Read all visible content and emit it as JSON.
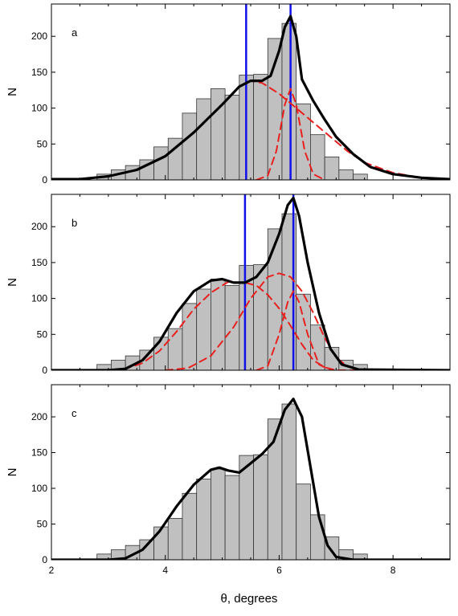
{
  "chart_data": {
    "type": "bar",
    "xlabel": "θ, degrees",
    "ylabel": "N",
    "xlim": [
      2,
      9
    ],
    "ylim": [
      0,
      245
    ],
    "xticks": [
      2,
      4,
      6,
      8
    ],
    "yticks": [
      0,
      50,
      100,
      150,
      200
    ],
    "bin_edges": [
      2.8,
      3.05,
      3.3,
      3.55,
      3.8,
      4.05,
      4.3,
      4.55,
      4.8,
      5.05,
      5.3,
      5.55,
      5.8,
      6.05,
      6.3,
      6.55,
      6.8,
      7.05,
      7.3,
      7.55
    ],
    "histogram": [
      8,
      14,
      20,
      28,
      46,
      58,
      93,
      113,
      127,
      118,
      146,
      147,
      197,
      218,
      106,
      63,
      32,
      14,
      8
    ],
    "colors": {
      "bars": "#c0c0c0",
      "total_fit": "#000000",
      "component_fit": "#e8201e",
      "marker_line": "#1010e8"
    },
    "panels": [
      {
        "label": "a",
        "markers": [
          5.42,
          6.2
        ],
        "curves": [
          {
            "style": "solid-black",
            "points": [
              [
                2,
                1
              ],
              [
                2.5,
                1
              ],
              [
                3,
                5
              ],
              [
                3.5,
                14
              ],
              [
                4,
                33
              ],
              [
                4.5,
                66
              ],
              [
                5,
                105
              ],
              [
                5.3,
                130
              ],
              [
                5.5,
                138
              ],
              [
                5.7,
                138
              ],
              [
                5.85,
                145
              ],
              [
                6.0,
                180
              ],
              [
                6.1,
                213
              ],
              [
                6.2,
                228
              ],
              [
                6.3,
                200
              ],
              [
                6.4,
                140
              ],
              [
                6.6,
                110
              ],
              [
                6.8,
                84
              ],
              [
                7.0,
                60
              ],
              [
                7.3,
                36
              ],
              [
                7.6,
                18
              ],
              [
                8,
                8
              ],
              [
                8.5,
                3
              ],
              [
                9,
                1
              ]
            ]
          },
          {
            "style": "dashed-red",
            "points": [
              [
                2,
                1
              ],
              [
                2.5,
                1
              ],
              [
                3,
                5
              ],
              [
                3.5,
                14
              ],
              [
                4,
                33
              ],
              [
                4.5,
                66
              ],
              [
                5,
                105
              ],
              [
                5.3,
                130
              ],
              [
                5.5,
                138
              ],
              [
                5.7,
                135
              ],
              [
                6.0,
                120
              ],
              [
                6.3,
                100
              ],
              [
                6.6,
                80
              ],
              [
                6.9,
                60
              ],
              [
                7.2,
                40
              ],
              [
                7.5,
                24
              ],
              [
                8,
                10
              ],
              [
                8.5,
                3
              ],
              [
                9,
                1
              ]
            ]
          },
          {
            "style": "dashed-red",
            "points": [
              [
                5.6,
                0
              ],
              [
                5.8,
                6
              ],
              [
                5.95,
                40
              ],
              [
                6.1,
                105
              ],
              [
                6.2,
                127
              ],
              [
                6.3,
                105
              ],
              [
                6.45,
                40
              ],
              [
                6.6,
                8
              ],
              [
                6.8,
                0
              ]
            ]
          }
        ]
      },
      {
        "label": "b",
        "markers": [
          5.4,
          6.25
        ],
        "curves": [
          {
            "style": "solid-black",
            "points": [
              [
                2,
                0
              ],
              [
                3,
                0
              ],
              [
                3.3,
                2
              ],
              [
                3.6,
                14
              ],
              [
                3.9,
                40
              ],
              [
                4.2,
                80
              ],
              [
                4.5,
                110
              ],
              [
                4.8,
                125
              ],
              [
                5.0,
                127
              ],
              [
                5.2,
                122
              ],
              [
                5.4,
                122
              ],
              [
                5.6,
                130
              ],
              [
                5.8,
                150
              ],
              [
                6.0,
                190
              ],
              [
                6.15,
                230
              ],
              [
                6.25,
                240
              ],
              [
                6.35,
                215
              ],
              [
                6.5,
                150
              ],
              [
                6.7,
                80
              ],
              [
                6.9,
                30
              ],
              [
                7.1,
                8
              ],
              [
                7.4,
                1
              ],
              [
                9,
                0
              ]
            ]
          },
          {
            "style": "dashed-red",
            "points": [
              [
                2,
                0
              ],
              [
                3,
                0
              ],
              [
                3.3,
                2
              ],
              [
                3.6,
                10
              ],
              [
                3.9,
                27
              ],
              [
                4.2,
                54
              ],
              [
                4.5,
                85
              ],
              [
                4.8,
                108
              ],
              [
                5.1,
                123
              ],
              [
                5.4,
                122
              ],
              [
                5.6,
                118
              ],
              [
                5.8,
                105
              ],
              [
                6.0,
                86
              ],
              [
                6.2,
                62
              ],
              [
                6.4,
                36
              ],
              [
                6.6,
                14
              ],
              [
                6.8,
                4
              ],
              [
                7.0,
                0
              ],
              [
                9,
                0
              ]
            ]
          },
          {
            "style": "dashed-red",
            "points": [
              [
                4.0,
                0
              ],
              [
                4.4,
                3
              ],
              [
                4.8,
                20
              ],
              [
                5.2,
                60
              ],
              [
                5.5,
                100
              ],
              [
                5.8,
                130
              ],
              [
                6.0,
                135
              ],
              [
                6.2,
                130
              ],
              [
                6.4,
                110
              ],
              [
                6.6,
                80
              ],
              [
                6.8,
                45
              ],
              [
                7.0,
                18
              ],
              [
                7.2,
                5
              ],
              [
                7.4,
                1
              ],
              [
                8,
                0
              ]
            ]
          },
          {
            "style": "dashed-red",
            "points": [
              [
                5.6,
                0
              ],
              [
                5.8,
                6
              ],
              [
                6.0,
                50
              ],
              [
                6.15,
                95
              ],
              [
                6.25,
                110
              ],
              [
                6.35,
                95
              ],
              [
                6.5,
                50
              ],
              [
                6.7,
                8
              ],
              [
                6.9,
                0
              ]
            ]
          }
        ]
      },
      {
        "label": "c",
        "markers": [],
        "curves": [
          {
            "style": "solid-black",
            "points": [
              [
                2,
                0
              ],
              [
                3,
                0
              ],
              [
                3.3,
                2
              ],
              [
                3.6,
                14
              ],
              [
                3.9,
                40
              ],
              [
                4.2,
                75
              ],
              [
                4.5,
                105
              ],
              [
                4.8,
                126
              ],
              [
                4.95,
                129
              ],
              [
                5.1,
                125
              ],
              [
                5.3,
                122
              ],
              [
                5.5,
                135
              ],
              [
                5.7,
                148
              ],
              [
                5.9,
                165
              ],
              [
                6.1,
                210
              ],
              [
                6.25,
                225
              ],
              [
                6.4,
                200
              ],
              [
                6.55,
                130
              ],
              [
                6.7,
                60
              ],
              [
                6.85,
                20
              ],
              [
                7.0,
                4
              ],
              [
                7.3,
                0
              ],
              [
                9,
                0
              ]
            ]
          }
        ]
      }
    ]
  }
}
